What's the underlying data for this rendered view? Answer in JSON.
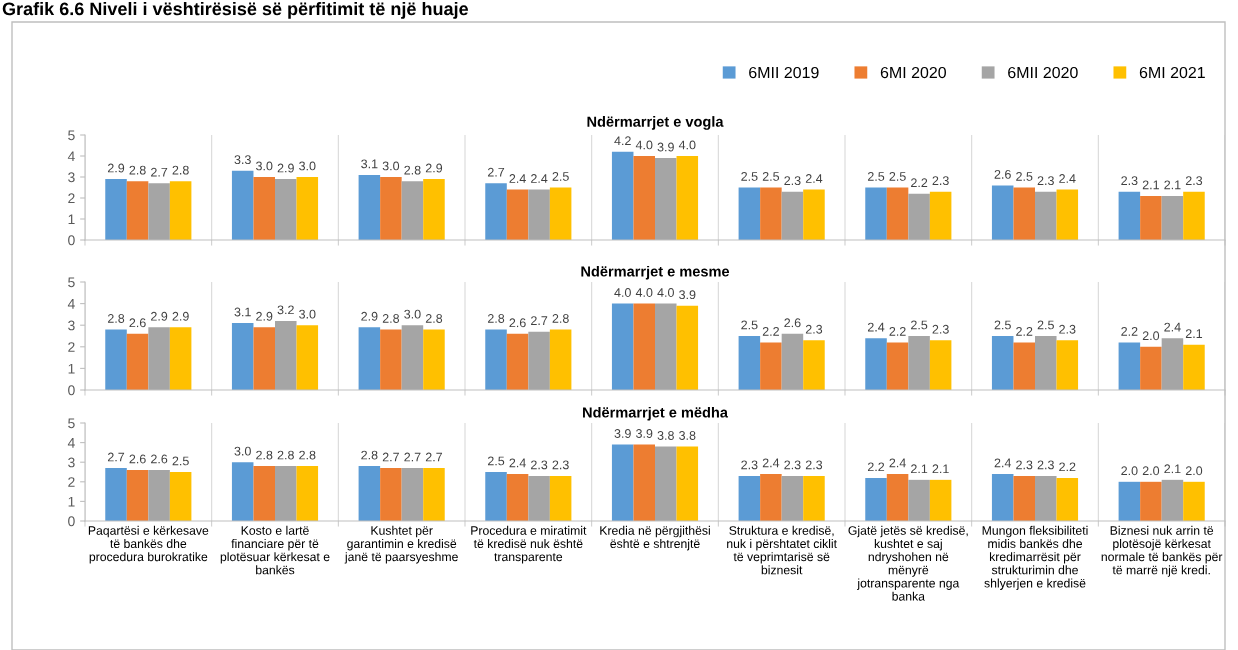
{
  "chart_data": [
    {
      "type": "bar",
      "title": "Ndërmarrjet e vogla",
      "annotations": [
        "Grafik 6.6 Niveli i vështirësisë së përfitimit të një huaje"
      ],
      "categories": [
        null,
        null,
        null,
        null,
        null,
        null,
        null,
        null,
        null
      ],
      "series": [
        {
          "name": "6MII 2019",
          "color": "#5b9bd5",
          "values": [
            2.9,
            3.3,
            3.1,
            2.7,
            4.2,
            2.5,
            2.5,
            2.6,
            2.3
          ],
          "value_labels": [
            "2.9",
            "3.3",
            "3.1",
            "2.7",
            "4.2",
            "2.5",
            "2.5",
            "2.6",
            "2.3"
          ]
        },
        {
          "name": "6MI 2020",
          "color": "#ed7d31",
          "values": [
            2.8,
            3.0,
            3.0,
            2.4,
            4.0,
            2.5,
            2.5,
            2.5,
            2.1
          ],
          "value_labels": [
            "2.8",
            "3.0",
            "3.0",
            "2.4",
            "4.0",
            "2.5",
            "2.5",
            "2.5",
            "2.1"
          ]
        },
        {
          "name": "6MII 2020",
          "color": "#a5a5a5",
          "values": [
            2.7,
            2.9,
            2.8,
            2.4,
            3.9,
            2.3,
            2.2,
            2.3,
            2.1
          ],
          "value_labels": [
            "2.7",
            "2.9",
            "2.8",
            "2.4",
            "3.9",
            "2.3",
            "2.2",
            "2.3",
            "2.1"
          ]
        },
        {
          "name": "6MI 2021",
          "color": "#ffc000",
          "values": [
            2.8,
            3.0,
            2.9,
            2.5,
            4.0,
            2.4,
            2.3,
            2.4,
            2.3
          ],
          "value_labels": [
            "2.8",
            "3.0",
            "2.9",
            "2.5",
            "4.0",
            "2.4",
            "2.3",
            "2.4",
            "2.3"
          ]
        }
      ],
      "ylim": [
        0,
        5
      ],
      "yticks": [
        0,
        1,
        2,
        3,
        4,
        5
      ],
      "grid": "x",
      "legend": "top right"
    },
    {
      "type": "bar",
      "title": "Ndërmarrjet e mesme",
      "categories": [
        null,
        null,
        null,
        null,
        null,
        null,
        null,
        null,
        null
      ],
      "series": [
        {
          "color": "#5b9bd5",
          "values": [
            2.8,
            3.1,
            2.9,
            2.8,
            4.0,
            2.5,
            2.4,
            2.5,
            2.2
          ],
          "value_labels": [
            "2.8",
            "3.1",
            "2.9",
            "2.8",
            "4.0",
            "2.5",
            "2.4",
            "2.5",
            "2.2"
          ]
        },
        {
          "color": "#ed7d31",
          "values": [
            2.6,
            2.9,
            2.8,
            2.6,
            4.0,
            2.2,
            2.2,
            2.2,
            2.0
          ],
          "value_labels": [
            "2.6",
            "2.9",
            "2.8",
            "2.6",
            "4.0",
            "2.2",
            "2.2",
            "2.2",
            "2.0"
          ]
        },
        {
          "color": "#a5a5a5",
          "values": [
            2.9,
            3.2,
            3.0,
            2.7,
            4.0,
            2.6,
            2.5,
            2.5,
            2.4
          ],
          "value_labels": [
            "2.9",
            "3.2",
            "3.0",
            "2.7",
            "4.0",
            "2.6",
            "2.5",
            "2.5",
            "2.4"
          ]
        },
        {
          "color": "#ffc000",
          "values": [
            2.9,
            3.0,
            2.8,
            2.8,
            3.9,
            2.3,
            2.3,
            2.3,
            2.1
          ],
          "value_labels": [
            "2.9",
            "3.0",
            "2.8",
            "2.8",
            "3.9",
            "2.3",
            "2.3",
            "2.3",
            "2.1"
          ]
        }
      ],
      "ylim": [
        0,
        5
      ],
      "yticks": [
        0,
        1,
        2,
        3,
        4,
        5
      ],
      "grid": "x"
    },
    {
      "type": "bar",
      "title": "Ndërmarrjet e mëdha",
      "categories": [
        "Paqartësi e kërkesave\ntë bankës dhe\nprocedura burokratike",
        "Kosto e lartë\nfinanciare për të\nplotësuar kërkesat e\nbankës",
        "Kushtet për\ngarantimin e kredisë\njanë të paarsyeshme",
        "Procedura e miratimit\ntë kredisë nuk është\ntransparente",
        "Kredia në përgjithësi\nështë e shtrenjtë",
        "Struktura e kredisë,\nnuk i përshtatet ciklit\ntë veprimtarisë së\nbiznesit",
        "Gjatë jetës së kredisë,\nkushtet e saj\nndryshohen në\nmënyrë\njotransparente nga\nbanka",
        "Mungon fleksibiliteti\nmidis bankës dhe\nkredimarrësit për\nstrukturimin dhe\nshlyerjen e kredisë",
        "Biznesi nuk arrin të\nplotësojë kërkesat\nnormale të bankës për\ntë marrë një kredi."
      ],
      "series": [
        {
          "color": "#5b9bd5",
          "values": [
            2.7,
            3.0,
            2.8,
            2.5,
            3.9,
            2.3,
            2.2,
            2.4,
            2.0
          ],
          "value_labels": [
            "2.7",
            "3.0",
            "2.8",
            "2.5",
            "3.9",
            "2.3",
            "2.2",
            "2.4",
            "2.0"
          ]
        },
        {
          "color": "#ed7d31",
          "values": [
            2.6,
            2.8,
            2.7,
            2.4,
            3.9,
            2.4,
            2.4,
            2.3,
            2.0
          ],
          "value_labels": [
            "2.6",
            "2.8",
            "2.7",
            "2.4",
            "3.9",
            "2.4",
            "2.4",
            "2.3",
            "2.0"
          ]
        },
        {
          "color": "#a5a5a5",
          "values": [
            2.6,
            2.8,
            2.7,
            2.3,
            3.8,
            2.3,
            2.1,
            2.3,
            2.1
          ],
          "value_labels": [
            "2.6",
            "2.8",
            "2.7",
            "2.3",
            "3.8",
            "2.3",
            "2.1",
            "2.3",
            "2.1"
          ]
        },
        {
          "color": "#ffc000",
          "values": [
            2.5,
            2.8,
            2.7,
            2.3,
            3.8,
            2.3,
            2.1,
            2.2,
            2.0
          ],
          "value_labels": [
            "2.5",
            "2.8",
            "2.7",
            "2.3",
            "3.8",
            "2.3",
            "2.1",
            "2.2",
            "2.0"
          ]
        }
      ],
      "ylim": [
        0,
        5
      ],
      "yticks": [
        0,
        1,
        2,
        3,
        4,
        5
      ],
      "grid": "x"
    }
  ]
}
